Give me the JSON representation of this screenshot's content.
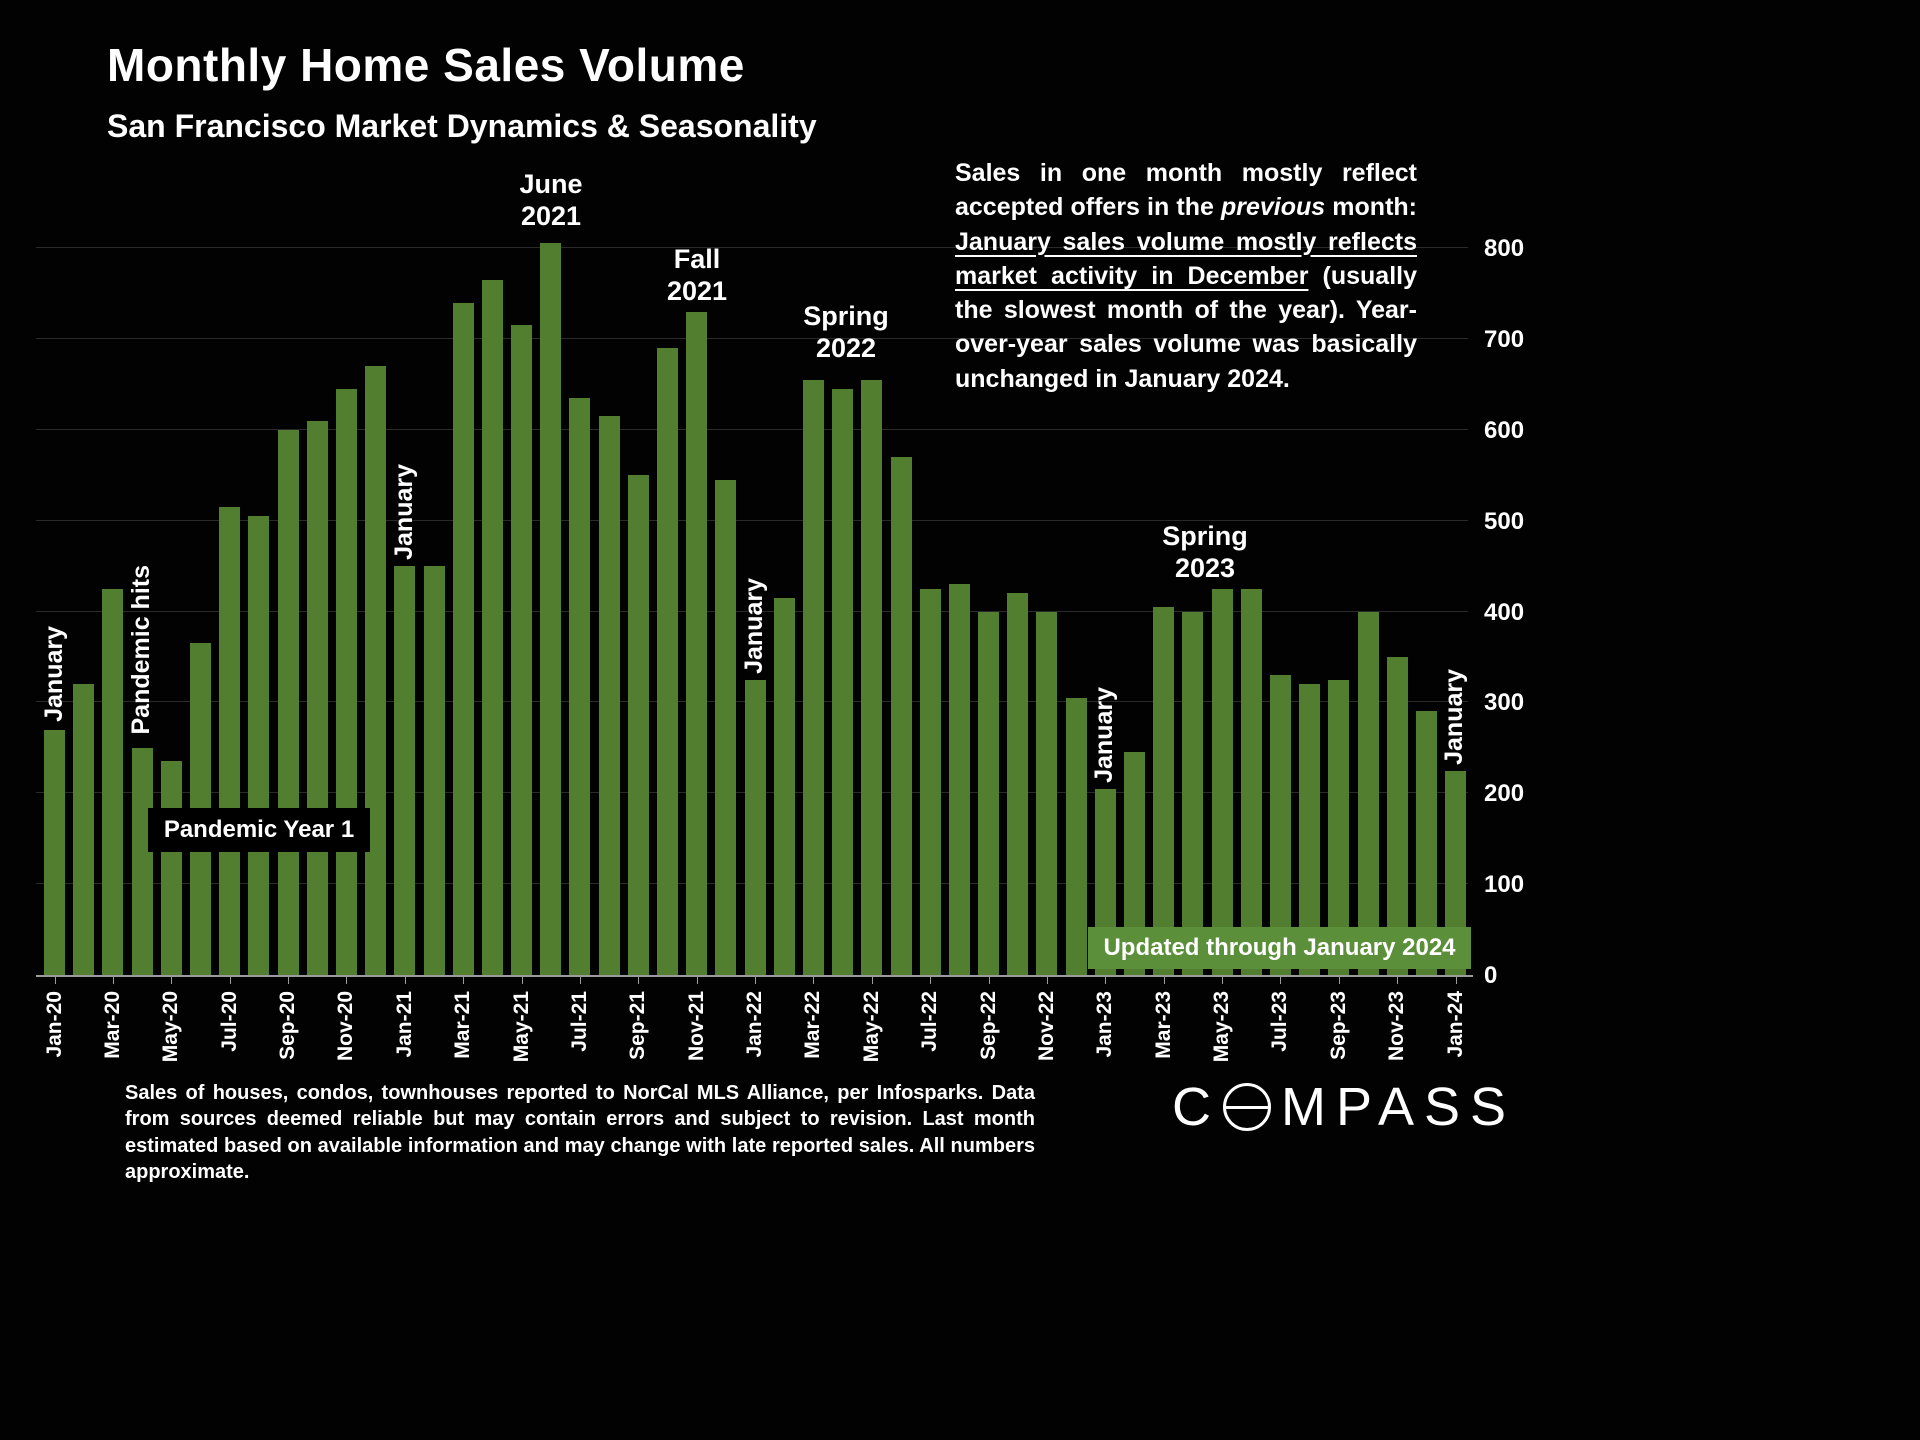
{
  "title": "Monthly Home Sales Volume",
  "subtitle": "San Francisco Market Dynamics & Seasonality",
  "commentary": {
    "p1": "Sales in one month mostly reflect accepted offers in the ",
    "italic": "previous",
    "p2": " month: ",
    "underline": "January sales volume mostly reflects market activity in December",
    "p3": " (usually the slowest month of the year). Year-over-year sales volume was basically unchanged in January 2024."
  },
  "annotations": {
    "jan20": "January",
    "pandemic_hits": "Pandemic hits",
    "pandemic_year1": "Pandemic Year 1",
    "jan21": "January",
    "jan22": "January",
    "jan23": "January",
    "jan24": "January",
    "june2021": {
      "line1": "June",
      "line2": "2021"
    },
    "fall2021": {
      "line1": "Fall",
      "line2": "2021"
    },
    "spring2022": {
      "line1": "Spring",
      "line2": "2022"
    },
    "spring2023": {
      "line1": "Spring",
      "line2": "2023"
    },
    "updated_banner": "Updated through January 2024"
  },
  "footer": "Sales of houses, condos, townhouses reported to NorCal MLS Alliance, per Infosparks. Data from sources deemed reliable but may contain errors and subject to revision. Last month estimated based on available information and may change with late reported sales. All numbers approximate.",
  "logo": {
    "prefix": "C",
    "suffix": "MPASS",
    "full": "COMPASS"
  },
  "chart_data": {
    "type": "bar",
    "title": "Monthly Home Sales Volume",
    "xlabel": "",
    "ylabel": "",
    "ylim": [
      0,
      800
    ],
    "yticks": [
      0,
      100,
      200,
      300,
      400,
      500,
      600,
      700,
      800
    ],
    "grid": true,
    "y_axis_side": "right",
    "x_tick_labels_every": 2,
    "bar_color": "#527e30",
    "x": [
      "Jan-20",
      "Feb-20",
      "Mar-20",
      "Apr-20",
      "May-20",
      "Jun-20",
      "Jul-20",
      "Aug-20",
      "Sep-20",
      "Oct-20",
      "Nov-20",
      "Dec-20",
      "Jan-21",
      "Feb-21",
      "Mar-21",
      "Apr-21",
      "May-21",
      "Jun-21",
      "Jul-21",
      "Aug-21",
      "Sep-21",
      "Oct-21",
      "Nov-21",
      "Dec-21",
      "Jan-22",
      "Feb-22",
      "Mar-22",
      "Apr-22",
      "May-22",
      "Jun-22",
      "Jul-22",
      "Aug-22",
      "Sep-22",
      "Oct-22",
      "Nov-22",
      "Dec-22",
      "Jan-23",
      "Feb-23",
      "Mar-23",
      "Apr-23",
      "May-23",
      "Jun-23",
      "Jul-23",
      "Aug-23",
      "Sep-23",
      "Oct-23",
      "Nov-23",
      "Dec-23",
      "Jan-24"
    ],
    "values": [
      270,
      320,
      425,
      250,
      235,
      365,
      515,
      505,
      600,
      610,
      645,
      670,
      450,
      450,
      740,
      765,
      715,
      805,
      635,
      615,
      550,
      690,
      730,
      545,
      325,
      415,
      655,
      645,
      655,
      570,
      425,
      430,
      400,
      420,
      400,
      305,
      205,
      245,
      405,
      400,
      425,
      425,
      330,
      320,
      325,
      400,
      350,
      290,
      225
    ]
  }
}
